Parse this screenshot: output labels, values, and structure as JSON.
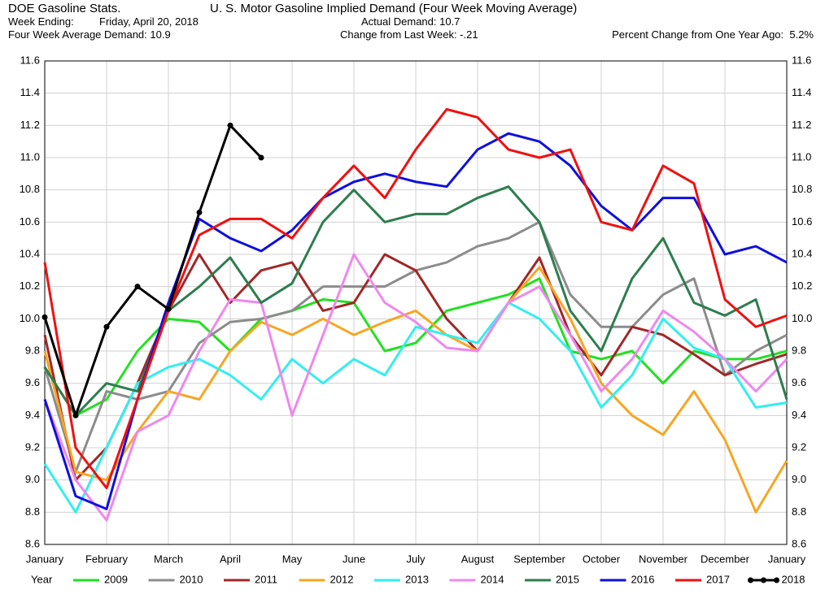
{
  "header": {
    "source": "DOE Gasoline Stats.",
    "week_ending_label": "Week Ending:",
    "week_ending": "Friday, April 20, 2018",
    "four_week": "Four Week Average Demand: 10.9",
    "actual": "Actual Demand: 10.7",
    "change": "Change from Last Week: -.21",
    "percent": "Percent Change from One Year Ago:  5.2%"
  },
  "chart_data": {
    "type": "line",
    "title": "U. S. Motor Gasoline Implied Demand (Four Week Moving Average)",
    "legend_title": "Year",
    "x": [
      0,
      0.5,
      1,
      1.5,
      2,
      2.5,
      3,
      3.5,
      4,
      4.5,
      5,
      5.5,
      6,
      6.5,
      7,
      7.5,
      8,
      8.5,
      9,
      9.5,
      10,
      10.5,
      11,
      11.5,
      12
    ],
    "xlim": [
      0,
      12
    ],
    "xticks": [
      {
        "value": 0,
        "label": "January"
      },
      {
        "value": 1,
        "label": "February"
      },
      {
        "value": 2,
        "label": "March"
      },
      {
        "value": 3,
        "label": "April"
      },
      {
        "value": 4,
        "label": "May"
      },
      {
        "value": 5,
        "label": "June"
      },
      {
        "value": 6,
        "label": "July"
      },
      {
        "value": 7,
        "label": "August"
      },
      {
        "value": 8,
        "label": "September"
      },
      {
        "value": 9,
        "label": "October"
      },
      {
        "value": 10,
        "label": "November"
      },
      {
        "value": 11,
        "label": "December"
      },
      {
        "value": 12,
        "label": "January"
      }
    ],
    "ylim": [
      8.6,
      11.6
    ],
    "yticks": [
      8.6,
      8.8,
      {
        "value": 9,
        "label": "9.0"
      },
      9.2,
      9.4,
      9.6,
      9.8,
      {
        "value": 10,
        "label": "10.0"
      },
      10.2,
      10.4,
      10.6,
      10.8,
      {
        "value": 11,
        "label": "11.0"
      },
      11.2,
      11.4,
      11.6
    ],
    "grid": true,
    "series": [
      {
        "name": "2009",
        "color": "#22e022",
        "values": [
          9.7,
          9.4,
          9.5,
          9.8,
          10.0,
          9.98,
          9.8,
          10.0,
          10.05,
          10.12,
          10.1,
          9.8,
          9.85,
          10.05,
          10.1,
          10.15,
          10.25,
          9.8,
          9.75,
          9.8,
          9.6,
          9.8,
          9.75,
          9.75,
          9.8
        ]
      },
      {
        "name": "2010",
        "color": "#8c8c8c",
        "values": [
          9.7,
          9.05,
          9.55,
          9.5,
          9.55,
          9.85,
          9.98,
          10.0,
          10.05,
          10.2,
          10.2,
          10.2,
          10.3,
          10.35,
          10.45,
          10.5,
          10.6,
          10.15,
          9.95,
          9.95,
          10.15,
          10.25,
          9.65,
          9.8,
          9.9
        ]
      },
      {
        "name": "2011",
        "color": "#a02828",
        "values": [
          9.9,
          9.0,
          9.2,
          9.6,
          10.05,
          10.4,
          10.1,
          10.3,
          10.35,
          10.05,
          10.1,
          10.4,
          10.3,
          10.0,
          9.8,
          10.1,
          10.38,
          9.9,
          9.65,
          9.95,
          9.9,
          9.78,
          9.65,
          9.72,
          9.78
        ]
      },
      {
        "name": "2012",
        "color": "#f5a623",
        "values": [
          9.8,
          9.05,
          9.0,
          9.3,
          9.55,
          9.5,
          9.8,
          9.98,
          9.9,
          10.0,
          9.9,
          9.98,
          10.05,
          9.9,
          9.8,
          10.1,
          10.32,
          10.0,
          9.6,
          9.4,
          9.28,
          9.55,
          9.25,
          8.8,
          9.12
        ]
      },
      {
        "name": "2013",
        "color": "#33eeee",
        "values": [
          9.1,
          8.8,
          9.2,
          9.6,
          9.7,
          9.75,
          9.65,
          9.5,
          9.75,
          9.6,
          9.75,
          9.65,
          9.95,
          9.9,
          9.85,
          10.1,
          10.0,
          9.8,
          9.45,
          9.65,
          10.0,
          9.82,
          9.75,
          9.45,
          9.48
        ]
      },
      {
        "name": "2014",
        "color": "#ee88ee",
        "values": [
          9.5,
          9.0,
          8.75,
          9.3,
          9.4,
          9.8,
          10.12,
          10.1,
          9.4,
          9.9,
          10.4,
          10.1,
          9.98,
          9.82,
          9.8,
          10.1,
          10.2,
          9.9,
          9.55,
          9.75,
          10.05,
          9.92,
          9.75,
          9.55,
          9.75
        ]
      },
      {
        "name": "2015",
        "color": "#2e7d4f",
        "values": [
          9.7,
          9.4,
          9.6,
          9.55,
          10.05,
          10.2,
          10.38,
          10.1,
          10.22,
          10.6,
          10.8,
          10.6,
          10.65,
          10.65,
          10.75,
          10.82,
          10.6,
          10.05,
          9.8,
          10.25,
          10.5,
          10.1,
          10.02,
          10.12,
          9.5
        ]
      },
      {
        "name": "2016",
        "color": "#1010dd",
        "values": [
          9.5,
          8.9,
          8.82,
          9.5,
          10.1,
          10.62,
          10.5,
          10.42,
          10.55,
          10.75,
          10.85,
          10.9,
          10.85,
          10.82,
          11.05,
          11.15,
          11.1,
          10.95,
          10.7,
          10.55,
          10.75,
          10.75,
          10.4,
          10.45,
          10.35
        ]
      },
      {
        "name": "2017",
        "color": "#ee1111",
        "values": [
          10.35,
          9.2,
          8.95,
          9.5,
          10.05,
          10.52,
          10.62,
          10.62,
          10.5,
          10.75,
          10.95,
          10.75,
          11.05,
          11.3,
          11.25,
          11.05,
          11.0,
          11.05,
          10.6,
          10.55,
          10.95,
          10.84,
          10.12,
          9.95,
          10.02
        ]
      },
      {
        "name": "2018",
        "color": "#000000",
        "markers": true,
        "values": [
          10.01,
          9.4,
          9.95,
          10.2,
          10.06,
          10.66,
          11.2,
          11.0,
          null,
          null,
          null,
          null,
          null,
          null,
          null,
          null,
          null,
          null,
          null,
          null,
          null,
          null,
          null,
          null,
          null
        ]
      }
    ]
  }
}
